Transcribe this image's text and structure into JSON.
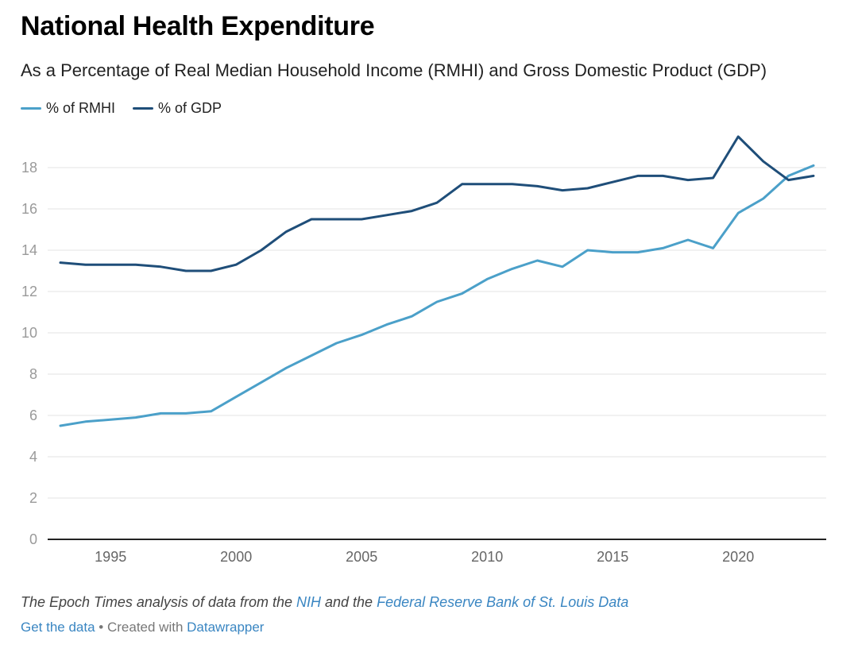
{
  "header": {
    "title": "National Health Expenditure",
    "subtitle": "As a Percentage of Real Median Household Income (RMHI) and Gross Domestic Product (GDP)"
  },
  "legend": [
    {
      "label": "% of RMHI",
      "color": "#4ba0c9"
    },
    {
      "label": "% of GDP",
      "color": "#1f4e79"
    }
  ],
  "footer": {
    "source_prefix": "The Epoch Times analysis of data from the ",
    "source_link1": "NIH",
    "source_mid": " and the ",
    "source_link2": "Federal Reserve Bank of St. Louis Data",
    "get_data": "Get the data",
    "separator": " • Created with ",
    "created_with": "Datawrapper"
  },
  "chart_data": {
    "type": "line",
    "title": "National Health Expenditure",
    "subtitle": "As a Percentage of Real Median Household Income (RMHI) and Gross Domestic Product (GDP)",
    "xlabel": "",
    "ylabel": "",
    "x": [
      1993,
      1994,
      1995,
      1996,
      1997,
      1998,
      1999,
      2000,
      2001,
      2002,
      2003,
      2004,
      2005,
      2006,
      2007,
      2008,
      2009,
      2010,
      2011,
      2012,
      2013,
      2014,
      2015,
      2016,
      2017,
      2018,
      2019,
      2020,
      2021,
      2022,
      2023
    ],
    "series": [
      {
        "name": "% of RMHI",
        "color": "#4ba0c9",
        "values": [
          5.5,
          5.7,
          5.8,
          5.9,
          6.1,
          6.1,
          6.2,
          6.9,
          7.6,
          8.3,
          8.9,
          9.5,
          9.9,
          10.4,
          10.8,
          11.5,
          11.9,
          12.6,
          13.1,
          13.5,
          13.2,
          14.0,
          13.9,
          13.9,
          14.1,
          14.5,
          14.1,
          15.8,
          16.5,
          17.6,
          18.1
        ]
      },
      {
        "name": "% of GDP",
        "color": "#1f4e79",
        "values": [
          13.4,
          13.3,
          13.3,
          13.3,
          13.2,
          13.0,
          13.0,
          13.3,
          14.0,
          14.9,
          15.5,
          15.5,
          15.5,
          15.7,
          15.9,
          16.3,
          17.2,
          17.2,
          17.2,
          17.1,
          16.9,
          17.0,
          17.3,
          17.6,
          17.6,
          17.4,
          17.5,
          19.5,
          18.3,
          17.4,
          17.6
        ]
      }
    ],
    "y_ticks": [
      "0",
      "2",
      "4",
      "6",
      "8",
      "10",
      "12",
      "14",
      "16",
      "18"
    ],
    "y_tick_values": [
      0,
      2,
      4,
      6,
      8,
      10,
      12,
      14,
      16,
      18
    ],
    "x_ticks": [
      "1995",
      "2000",
      "2005",
      "2010",
      "2015",
      "2020"
    ],
    "x_tick_values": [
      1995,
      2000,
      2005,
      2010,
      2015,
      2020
    ],
    "xlim": [
      1993,
      2023
    ],
    "ylim": [
      0,
      18
    ],
    "grid": true,
    "legend_position": "top-left"
  }
}
